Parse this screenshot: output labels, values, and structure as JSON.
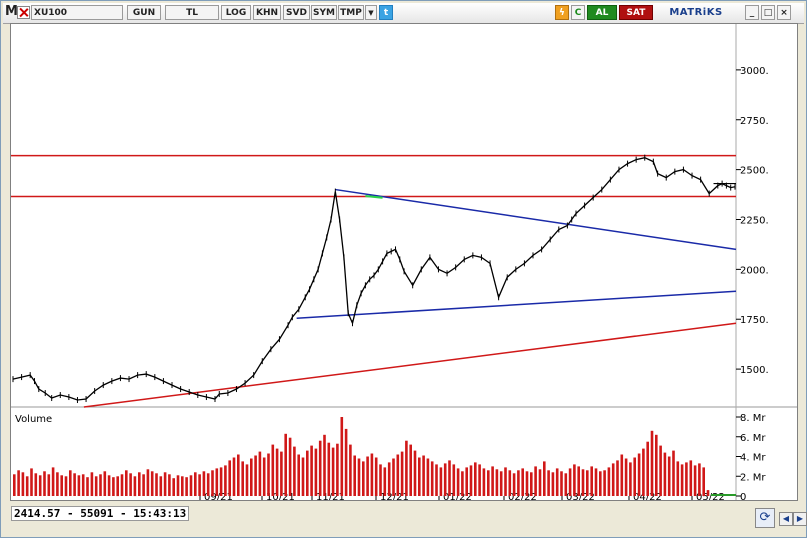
{
  "toolbar": {
    "logo": "M",
    "symbol": "XU100",
    "period": "GUN",
    "currency": "TL",
    "log": "LOG",
    "khn": "KHN",
    "svd": "SVD",
    "sym": "SYM",
    "tmp": "TMP",
    "buy": "AL",
    "sell": "SAT",
    "brand": "MATRiKS",
    "refresh_glyph": "C",
    "twitter_glyph": "t",
    "dropdown_glyph": "▼",
    "win_min": "_",
    "win_max": "□",
    "win_close": "×"
  },
  "status": {
    "readout": "2414.57 - 55091 - 15:43:13"
  },
  "colors": {
    "price": "#000000",
    "red_line": "#d01818",
    "blue_line": "#1a2aa8",
    "volume": "#d01818",
    "green_mark": "#2ad14a"
  },
  "chart_data": {
    "type": "line",
    "title": "XU100",
    "x_labels": [
      "09/21",
      "10/21",
      "11/21",
      "12/21",
      "01/22",
      "02/22",
      "03/22",
      "04/22",
      "05/22"
    ],
    "price_axis": {
      "ticks": [
        "3000.",
        "2750.",
        "2500.",
        "2250.",
        "2000.",
        "1750.",
        "1500."
      ],
      "tick_values": [
        3000,
        2750,
        2500,
        2250,
        2000,
        1750,
        1500
      ],
      "range": [
        1310,
        3230
      ]
    },
    "series": [
      {
        "name": "",
        "x": [
          0,
          4,
          8,
          10,
          12,
          15,
          18,
          22,
          26,
          30,
          34,
          38,
          42,
          46,
          50,
          54,
          58,
          62,
          66,
          70,
          74,
          78,
          82,
          86,
          90,
          94,
          96,
          100,
          104,
          108,
          112,
          116,
          120,
          124,
          128,
          130,
          133,
          136,
          138,
          140,
          142,
          144,
          146,
          148,
          150,
          152,
          154,
          156,
          158,
          160,
          162,
          164,
          166,
          168,
          170,
          172,
          174,
          176,
          178,
          180,
          182,
          186,
          190,
          194,
          198,
          202,
          206,
          210,
          214,
          218,
          222,
          226,
          230,
          234,
          238,
          242,
          246,
          250,
          254,
          258,
          260,
          262,
          266,
          270,
          274,
          278,
          282,
          286,
          290,
          294,
          298,
          300,
          304,
          308,
          312,
          316,
          320,
          324,
          328,
          330,
          332,
          334,
          336
        ],
        "values": [
          1450,
          1460,
          1470,
          1440,
          1400,
          1380,
          1355,
          1370,
          1360,
          1345,
          1350,
          1390,
          1420,
          1440,
          1455,
          1450,
          1470,
          1475,
          1460,
          1440,
          1420,
          1400,
          1385,
          1370,
          1360,
          1350,
          1375,
          1380,
          1400,
          1430,
          1470,
          1540,
          1600,
          1650,
          1720,
          1760,
          1800,
          1860,
          1900,
          1950,
          2000,
          2080,
          2160,
          2250,
          2390,
          2250,
          2060,
          1780,
          1730,
          1820,
          1880,
          1920,
          1950,
          1970,
          2000,
          2040,
          2080,
          2090,
          2100,
          2050,
          1990,
          1920,
          2000,
          2060,
          2000,
          1980,
          2010,
          2050,
          2070,
          2060,
          2030,
          1860,
          1960,
          2000,
          2030,
          2070,
          2100,
          2150,
          2200,
          2220,
          2250,
          2280,
          2320,
          2360,
          2400,
          2450,
          2500,
          2530,
          2550,
          2560,
          2540,
          2480,
          2460,
          2490,
          2500,
          2470,
          2450,
          2380,
          2420,
          2430,
          2420,
          2410,
          2414.57
        ]
      },
      {
        "name": "Volume",
        "ticks": [
          "8. Mr",
          "6. Mr",
          "4. Mr",
          "2. Mr",
          "0"
        ],
        "tick_values": [
          8,
          6,
          4,
          2,
          0
        ],
        "values": [
          2.2,
          2.6,
          2.4,
          2.0,
          2.8,
          2.3,
          2.1,
          2.5,
          2.2,
          2.9,
          2.4,
          2.1,
          2.0,
          2.6,
          2.3,
          2.1,
          2.2,
          1.9,
          2.4,
          2.0,
          2.2,
          2.5,
          2.1,
          1.9,
          2.0,
          2.2,
          2.6,
          2.3,
          2.0,
          2.4,
          2.2,
          2.7,
          2.5,
          2.3,
          2.0,
          2.4,
          2.2,
          1.8,
          2.1,
          2.0,
          1.9,
          2.1,
          2.4,
          2.2,
          2.5,
          2.3,
          2.6,
          2.8,
          2.9,
          3.1,
          3.6,
          3.9,
          4.2,
          3.5,
          3.2,
          3.8,
          4.1,
          4.5,
          3.9,
          4.3,
          5.2,
          4.8,
          4.5,
          6.3,
          5.9,
          5.0,
          4.2,
          3.9,
          4.6,
          5.1,
          4.8,
          5.6,
          6.2,
          5.4,
          4.9,
          5.3,
          8.0,
          6.8,
          5.2,
          4.1,
          3.8,
          3.5,
          4.0,
          4.3,
          3.9,
          3.2,
          2.9,
          3.4,
          3.8,
          4.2,
          4.5,
          5.6,
          5.2,
          4.6,
          3.9,
          4.1,
          3.8,
          3.5,
          3.2,
          2.9,
          3.3,
          3.6,
          3.2,
          2.8,
          2.5,
          2.9,
          3.1,
          3.4,
          3.2,
          2.8,
          2.6,
          3.0,
          2.7,
          2.5,
          2.9,
          2.6,
          2.3,
          2.6,
          2.8,
          2.5,
          2.4,
          3.0,
          2.7,
          3.5,
          2.6,
          2.4,
          2.8,
          2.5,
          2.3,
          2.8,
          3.2,
          3.0,
          2.7,
          2.6,
          3.0,
          2.8,
          2.5,
          2.6,
          2.9,
          3.3,
          3.6,
          4.2,
          3.8,
          3.4,
          3.9,
          4.3,
          4.8,
          5.5,
          6.6,
          6.2,
          5.1,
          4.4,
          4.0,
          4.6,
          3.5,
          3.2,
          3.4,
          3.6,
          3.1,
          3.3,
          2.9,
          0.6
        ]
      }
    ],
    "xlabel": "",
    "ylabel": "",
    "grid": false
  }
}
